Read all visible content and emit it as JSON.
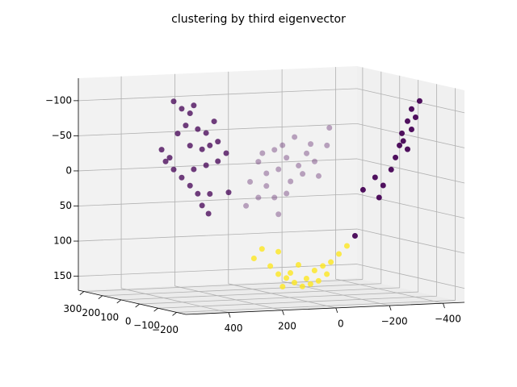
{
  "chart_data": {
    "type": "scatter3d",
    "title": "clustering by third eigenvector",
    "colors": [
      "#440154",
      "#fde725"
    ],
    "xlim": [
      -480,
      560
    ],
    "ylim": [
      -250,
      330
    ],
    "zlim": [
      -132,
      170
    ],
    "xticks": [
      400,
      200,
      0,
      {
        "value": -200,
        "label": "−200"
      },
      {
        "value": -400,
        "label": "−400"
      }
    ],
    "yticks": [
      300,
      200,
      100,
      0,
      {
        "value": -100,
        "label": "−100"
      },
      {
        "value": -200,
        "label": "−200"
      }
    ],
    "zticks": [
      {
        "value": -100,
        "label": "−100"
      },
      {
        "value": -50,
        "label": "−50"
      },
      0,
      50,
      100,
      150
    ],
    "grid": true,
    "points": {
      "x": [
        467,
        437,
        406,
        392,
        422,
        377,
        346,
        452,
        332,
        361,
        302,
        406,
        512,
        497,
        467,
        437,
        406,
        377,
        361,
        332,
        302,
        346,
        271,
        316,
        262,
        482,
        392,
        337,
        -347,
        -317,
        -302,
        -281,
        -317,
        -272,
        -257,
        -241,
        -286,
        -332,
        -211,
        -181,
        -196,
        -136,
        -106,
        -302,
        -106,
        -151,
        -196,
        -241,
        -271,
        -166,
        -121,
        -211,
        -256,
        -301,
        -60,
        -91,
        -151,
        -45,
        -166,
        -356,
        -181,
        -226,
        -316,
        -347,
        -91,
        -196,
        -286,
        -121,
        172,
        202,
        141,
        111,
        81,
        51,
        21,
        -9,
        -39,
        -70,
        -85,
        -115,
        -145,
        111,
        36,
        -24,
        66,
        -55,
        6,
        95
      ],
      "y": [
        -50,
        -50,
        -50,
        -50,
        -50,
        -50,
        -50,
        -50,
        -50,
        -50,
        -50,
        -50,
        -50,
        -50,
        -50,
        -50,
        -50,
        -50,
        -50,
        -50,
        -50,
        -50,
        -50,
        -50,
        -50,
        -50,
        -50,
        -50,
        -200,
        -200,
        -200,
        -200,
        -200,
        -200,
        -200,
        -200,
        -200,
        -200,
        -200,
        -200,
        -200,
        -200,
        -200,
        -200,
        300,
        300,
        300,
        300,
        300,
        300,
        300,
        300,
        300,
        300,
        300,
        300,
        300,
        300,
        300,
        300,
        300,
        300,
        300,
        300,
        300,
        300,
        300,
        300,
        -100,
        -100,
        -100,
        -100,
        -100,
        -100,
        -100,
        -100,
        -100,
        -100,
        -100,
        -100,
        -100,
        -100,
        -100,
        -100,
        -100,
        -100,
        -100,
        -100
      ],
      "z": [
        -120,
        -109,
        -102,
        -113,
        -85,
        -79,
        -73,
        -74,
        -55,
        -50,
        -60,
        -56,
        -52,
        -35,
        -23,
        -11,
        1,
        13,
        30,
        14,
        -32,
        -27,
        -43,
        -89,
        13,
        -40,
        -22,
        42,
        -116,
        -105,
        -88,
        -71,
        -76,
        -54,
        -37,
        -20,
        -60,
        -93,
        2,
        -10,
        19,
        7,
        72,
        -48,
        -16,
        -20,
        -8,
        4,
        -13,
        8,
        13,
        26,
        16,
        -1,
        24,
        47,
        48,
        58,
        72,
        -48,
        -26,
        -37,
        20,
        -23,
        -4,
        43,
        -26,
        31,
        92,
        105,
        117,
        129,
        135,
        142,
        148,
        145,
        141,
        132,
        115,
        104,
        93,
        97,
        117,
        126,
        128,
        120,
        137,
        147
      ],
      "cluster": [
        0,
        0,
        0,
        0,
        0,
        0,
        0,
        0,
        0,
        0,
        0,
        0,
        0,
        0,
        0,
        0,
        0,
        0,
        0,
        0,
        0,
        0,
        0,
        0,
        0,
        0,
        0,
        0,
        0,
        0,
        0,
        0,
        0,
        0,
        0,
        0,
        0,
        0,
        0,
        0,
        0,
        0,
        0,
        0,
        0,
        0,
        0,
        0,
        0,
        0,
        0,
        0,
        0,
        0,
        0,
        0,
        0,
        0,
        0,
        0,
        0,
        0,
        0,
        0,
        0,
        0,
        0,
        0,
        1,
        1,
        1,
        1,
        1,
        1,
        1,
        1,
        1,
        1,
        1,
        1,
        1,
        1,
        1,
        1,
        1,
        1,
        1,
        1
      ]
    }
  }
}
